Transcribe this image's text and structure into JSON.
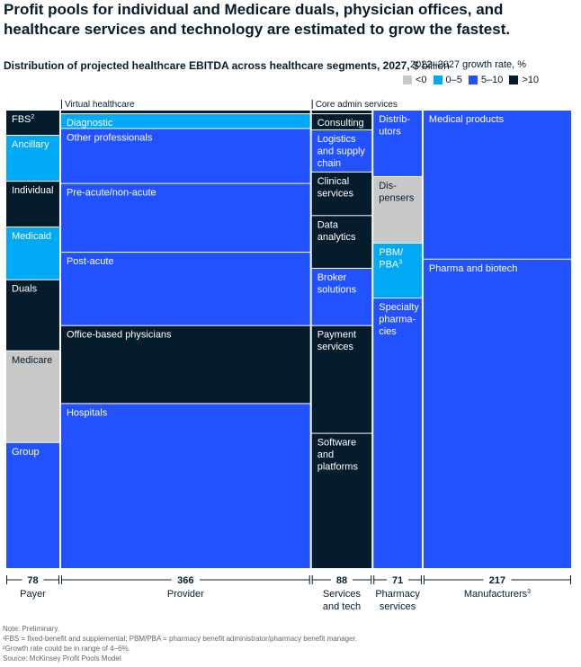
{
  "title": "Profit pools for individual and Medicare duals, physician offices, and healthcare services and technology are estimated to grow the fastest.",
  "subtitle_bold": "Distribution of projected healthcare EBITDA across healthcare segments, 2027,",
  "subtitle_unit": "$ billion",
  "legend": {
    "title": "2022–2027 growth rate, %",
    "items": [
      {
        "label": "<0",
        "color": "#c8c8c8"
      },
      {
        "label": "0–5",
        "color": "#00a9f4"
      },
      {
        "label": "5–10",
        "color": "#2251ff"
      },
      {
        "label": ">10",
        "color": "#051c2c"
      }
    ]
  },
  "colors": {
    "lt0": "#c8c8c8",
    "g0_5": "#00a9f4",
    "g5_10": "#2251ff",
    "gt10": "#051c2c",
    "text_light": "#ffffff",
    "text_dark": "#051c2c",
    "axis": "#051c2c"
  },
  "chart_data": {
    "type": "marimekko",
    "unit": "$ billion",
    "total_range": [
      0,
      820
    ],
    "columns": [
      {
        "name": "Payer",
        "total": 78,
        "total_label": "78",
        "label_lines": [
          "Payer"
        ],
        "y_range": [
          0,
          100
        ],
        "segments": [
          {
            "name": "FBS",
            "sup": "2",
            "share": 5.5,
            "growth": ">10"
          },
          {
            "name": "Ancillary",
            "share": 10.0,
            "growth": "0–5"
          },
          {
            "name": "Individual",
            "share": 10.0,
            "growth": ">10"
          },
          {
            "name": "Medicaid",
            "share": 11.5,
            "growth": "0–5"
          },
          {
            "name": "Duals",
            "share": 15.5,
            "growth": ">10"
          },
          {
            "name": "Medicare",
            "share": 20.0,
            "growth": "<0"
          },
          {
            "name": "Group",
            "share": 27.5,
            "growth": "5–10"
          }
        ]
      },
      {
        "name": "Provider",
        "total": 366,
        "total_label": "366",
        "label_lines": [
          "Provider"
        ],
        "header": "Virtual healthcare",
        "y_range": [
          0,
          100
        ],
        "segments": [
          {
            "name": "Virtual healthcare",
            "share": 0.8,
            "growth": ">10",
            "hide_label": true
          },
          {
            "name": "Diagnostic",
            "share": 3.2,
            "growth": "0–5"
          },
          {
            "name": "Other professionals",
            "share": 12.0,
            "growth": "5–10"
          },
          {
            "name": "Pre-acute/non-acute",
            "share": 15.0,
            "growth": "5–10"
          },
          {
            "name": "Post-acute",
            "share": 16.0,
            "growth": "5–10"
          },
          {
            "name": "Office-based physicians",
            "share": 17.0,
            "growth": ">10"
          },
          {
            "name": "Hospitals",
            "share": 36.0,
            "growth": "5–10"
          }
        ]
      },
      {
        "name": "Services and tech",
        "total": 88,
        "total_label": "88",
        "label_lines": [
          "Services",
          "and tech"
        ],
        "header": "Core admin services",
        "y_range": [
          0,
          100
        ],
        "segments": [
          {
            "name": "Core admin services",
            "share": 0.8,
            "growth": ">10",
            "hide_label": true
          },
          {
            "name": "Consulting",
            "share": 3.5,
            "growth": ">10"
          },
          {
            "name": "Logistics and supply chain",
            "lines": [
              "Logistics",
              "and supply",
              "chain"
            ],
            "share": 9.2,
            "growth": "5–10"
          },
          {
            "name": "Clinical services",
            "lines": [
              "Clinical",
              "services"
            ],
            "share": 9.5,
            "growth": ">10"
          },
          {
            "name": "Data analytics",
            "lines": [
              "Data",
              "analytics"
            ],
            "share": 11.5,
            "growth": ">10"
          },
          {
            "name": "Broker solutions",
            "lines": [
              "Broker",
              "solutions"
            ],
            "share": 12.5,
            "growth": "5–10"
          },
          {
            "name": "Payment services",
            "lines": [
              "Payment",
              "services"
            ],
            "share": 23.5,
            "growth": ">10"
          },
          {
            "name": "Software and platforms",
            "lines": [
              "Software",
              "and",
              "platforms"
            ],
            "share": 29.5,
            "growth": ">10"
          }
        ]
      },
      {
        "name": "Pharmacy services",
        "total": 71,
        "total_label": "71",
        "label_lines": [
          "Pharmacy",
          "services"
        ],
        "y_range": [
          0,
          100
        ],
        "segments": [
          {
            "name": "Distributors",
            "lines": [
              "Distrib-",
              "utors"
            ],
            "share": 14.5,
            "growth": "5–10"
          },
          {
            "name": "Dispensers",
            "lines": [
              "Dis-",
              "pensers"
            ],
            "share": 14.5,
            "growth": "<0"
          },
          {
            "name": "PBM/PBA",
            "lines": [
              "PBM/",
              "PBA"
            ],
            "sup": "3",
            "share": 12.0,
            "growth": "0–5"
          },
          {
            "name": "Specialty pharmacies",
            "lines": [
              "Specialty",
              "pharma-",
              "cies"
            ],
            "share": 59.0,
            "growth": "5–10"
          }
        ]
      },
      {
        "name": "Manufacturers",
        "sup": "3",
        "total": 217,
        "total_label": "217",
        "label_lines": [
          "Manufacturers"
        ],
        "y_range": [
          0,
          100
        ],
        "segments": [
          {
            "name": "Medical products",
            "share": 32.5,
            "growth": "5–10"
          },
          {
            "name": "Pharma and biotech",
            "share": 67.5,
            "growth": "5–10"
          }
        ]
      }
    ]
  },
  "footnotes": [
    "Note: Preliminary.",
    "¹FBS = fixed-benefit and supplemental; PBM/PBA = pharmacy benefit administrator/pharmacy benefit manager.",
    "²Growth rate could be in range of 4–6%.",
    "Source: McKinsey Profit Pools Model"
  ]
}
